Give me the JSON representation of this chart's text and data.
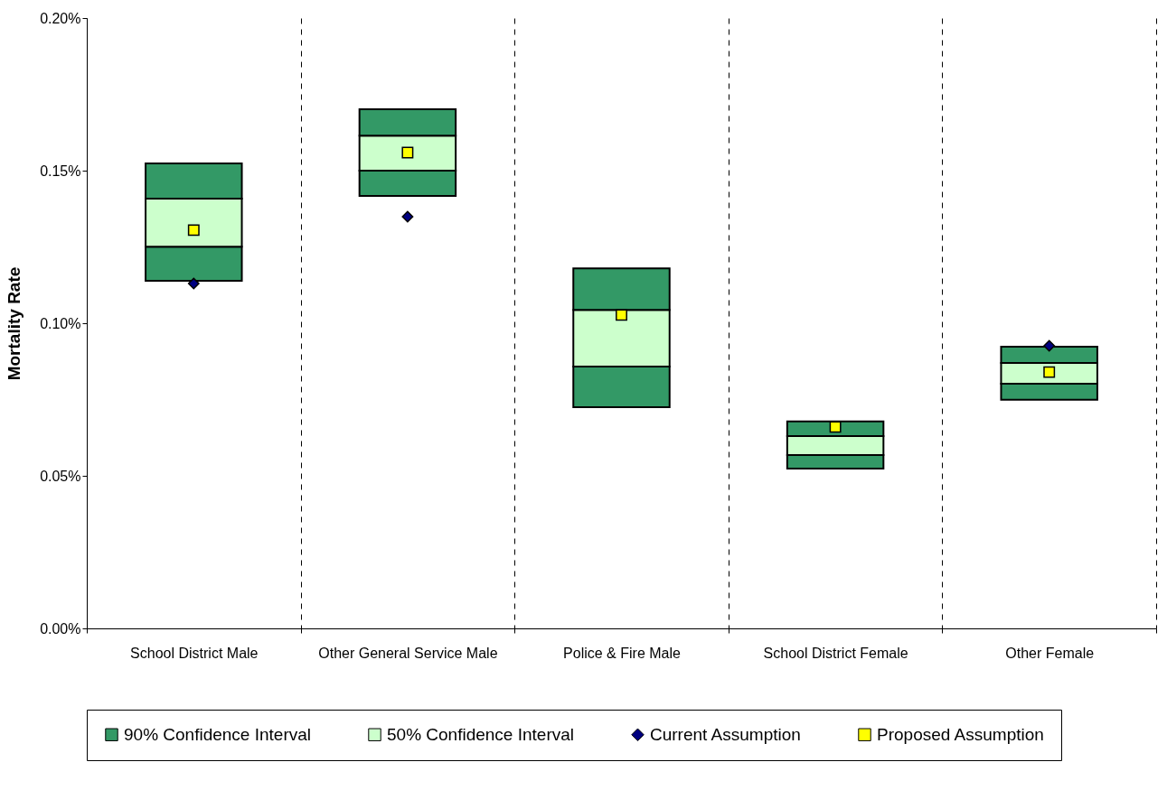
{
  "chart_data": {
    "type": "bar",
    "ylabel": "Mortality Rate",
    "categories": [
      "School District Male",
      "Other General Service Male",
      "Police & Fire Male",
      "School District Female",
      "Other Female"
    ],
    "series": [
      {
        "name": "90% Confidence Interval",
        "color": "#339966",
        "base": [
          0.1139,
          0.1417,
          0.0725,
          0.0524,
          0.0749
        ],
        "values": [
          0.0112,
          0.0083,
          0.0133,
          0.0044,
          0.0053
        ]
      },
      {
        "name": "50% Confidence Interval",
        "color": "#ccffcc",
        "base": [
          0.1251,
          0.15,
          0.0858,
          0.0568,
          0.0802
        ],
        "values": [
          0.0157,
          0.0115,
          0.0186,
          0.0062,
          0.0068
        ]
      },
      {
        "color": "#339966",
        "base": [
          0.1408,
          0.1615,
          0.1044,
          0.063,
          0.087
        ],
        "values": [
          0.0116,
          0.0086,
          0.0136,
          0.0048,
          0.0053
        ]
      },
      {
        "type": "scatter",
        "name": "Current Assumption",
        "color": "#000080",
        "marker": "diamond",
        "x": [
          "School District Male",
          "Other General Service Male",
          "Police & Fire Male",
          "School District Female",
          "Other Female"
        ],
        "values": [
          0.113,
          0.1349,
          null,
          null,
          0.0926
        ]
      },
      {
        "type": "scatter",
        "name": "Proposed Assumption",
        "color": "#ffff00",
        "marker": "square",
        "x": [
          "School District Male",
          "Other General Service Male",
          "Police & Fire Male",
          "School District Female",
          "Other Female"
        ],
        "values": [
          0.1305,
          0.1559,
          0.1027,
          0.066,
          0.084
        ]
      }
    ],
    "ylim": [
      0,
      0.2
    ],
    "yticks": [
      {
        "value": 0,
        "label": "0.00%"
      },
      {
        "value": 0.05,
        "label": "0.05%"
      },
      {
        "value": 0.1,
        "label": "0.10%"
      },
      {
        "value": 0.15,
        "label": "0.15%"
      },
      {
        "value": 0.2,
        "label": "0.20%"
      }
    ],
    "grid": "x",
    "legend": "bottom"
  }
}
